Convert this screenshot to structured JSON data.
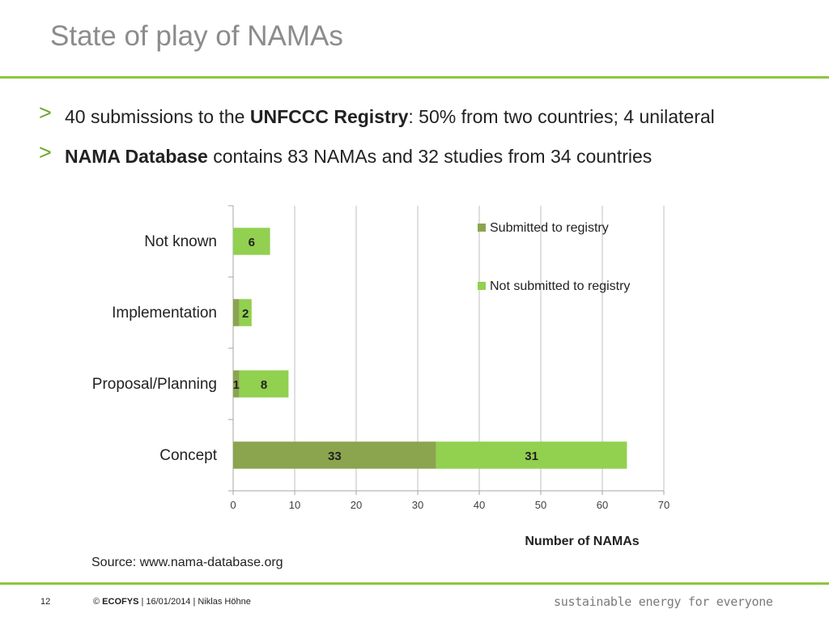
{
  "slide": {
    "title": "State of play of NAMAs",
    "bullets": [
      {
        "arrow": ">",
        "pre": "40 submissions to the ",
        "bold": "UNFCCC Registry",
        "post": ": 50% from two countries; 4 unilateral"
      },
      {
        "arrow": ">",
        "pre": "",
        "bold": "NAMA Database",
        "post": " contains 83 NAMAs and 32 studies from 34 countries"
      }
    ],
    "source": "Source: www.nama-database.org",
    "footer": {
      "page": "12",
      "copyright": "©",
      "brand": "ECOFYS",
      "info": " | 16/01/2014 | Niklas Höhne",
      "tagline": "sustainable energy for everyone"
    }
  },
  "chart_data": {
    "type": "bar",
    "orientation": "horizontal",
    "stacked": true,
    "categories": [
      "Not known",
      "Implementation",
      "Proposal/Planning",
      "Concept"
    ],
    "series": [
      {
        "name": "Submitted to registry",
        "values": [
          0,
          1,
          1,
          33
        ],
        "color": "#8aa54e",
        "labels": [
          "",
          "",
          "1",
          "33"
        ]
      },
      {
        "name": "Not submitted to registry",
        "values": [
          6,
          2,
          8,
          31
        ],
        "color": "#92d050",
        "labels": [
          "6",
          "2",
          "8",
          "31"
        ]
      }
    ],
    "xlabel": "Number of NAMAs",
    "ylabel": "",
    "xlim": [
      0,
      70
    ],
    "xticks": [
      0,
      10,
      20,
      30,
      40,
      50,
      60,
      70
    ],
    "grid": true,
    "legend_position": "top-right"
  }
}
